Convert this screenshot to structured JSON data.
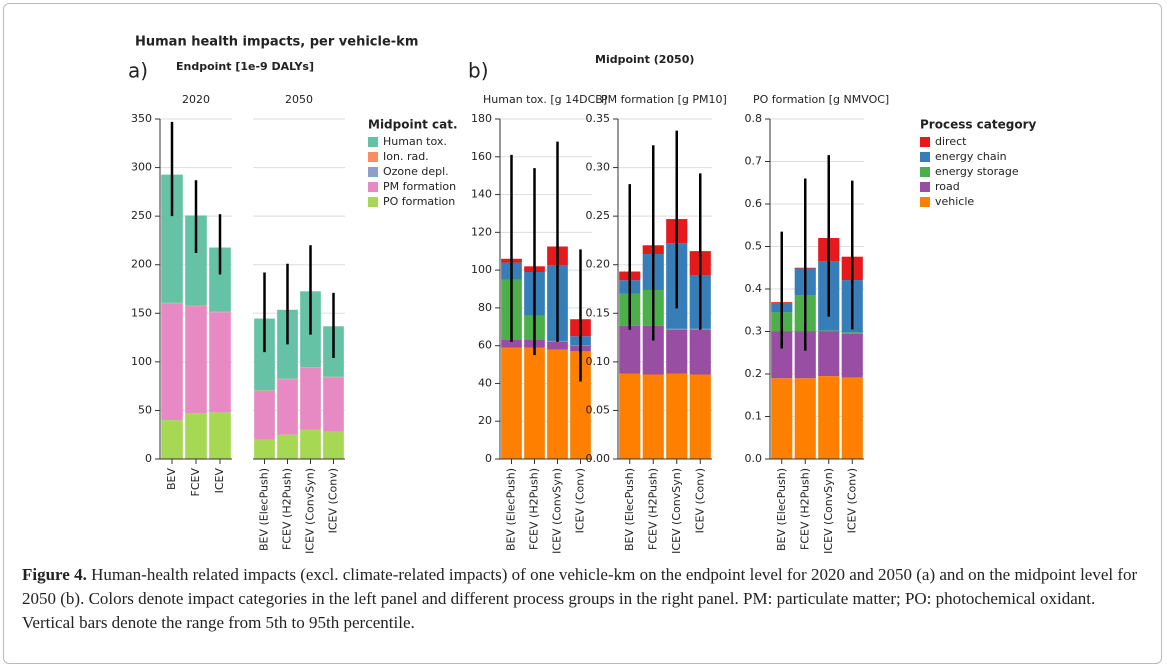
{
  "title": "Human health impacts, per vehicle-km",
  "panels": [
    {
      "label": "a)",
      "title": "Endpoint [1e-9 DALYs]"
    },
    {
      "label": "b)",
      "title": "Midpoint (2050)"
    }
  ],
  "chart_data": [
    {
      "type": "bar",
      "stacked": true,
      "title": "2020",
      "categories": [
        "BEV",
        "FCEV",
        "ICEV"
      ],
      "ylim": [
        0,
        350
      ],
      "yticks": [
        0,
        50,
        100,
        150,
        200,
        250,
        300,
        350
      ],
      "grid": true,
      "legend": true,
      "legend_title": "Midpoint cat.",
      "series": [
        {
          "name": "PO formation",
          "color": "#a6d854",
          "values": [
            40,
            47,
            48
          ]
        },
        {
          "name": "PM formation",
          "color": "#e78ac3",
          "values": [
            120,
            110,
            103
          ]
        },
        {
          "name": "Ozone depl.",
          "color": "#8da0cb",
          "values": [
            0.2,
            0.2,
            0.2
          ]
        },
        {
          "name": "Ion. rad.",
          "color": "#fc8d62",
          "values": [
            0.5,
            0.5,
            0.5
          ]
        },
        {
          "name": "Human tox.",
          "color": "#66c2a5",
          "values": [
            132,
            93,
            66
          ]
        }
      ],
      "ci_low": [
        250,
        212,
        190
      ],
      "ci_high": [
        347,
        287,
        252
      ]
    },
    {
      "type": "bar",
      "stacked": true,
      "title": "2050",
      "categories": [
        "BEV (ElecPush)",
        "FCEV (H2Push)",
        "ICEV (ConvSyn)",
        "ICEV (Conv)"
      ],
      "ylim": [
        0,
        350
      ],
      "grid": true,
      "legend": false,
      "series": [
        {
          "color": "#a6d854",
          "values": [
            20,
            25,
            30,
            28
          ]
        },
        {
          "color": "#e78ac3",
          "values": [
            50,
            57,
            64,
            56
          ]
        },
        {
          "color": "#8da0cb",
          "values": [
            0.2,
            0.2,
            0.2,
            0.2
          ]
        },
        {
          "color": "#fc8d62",
          "values": [
            0.4,
            0.4,
            0.4,
            0.4
          ]
        },
        {
          "color": "#66c2a5",
          "values": [
            74,
            71,
            78,
            52
          ]
        }
      ],
      "ci_low": [
        110,
        118,
        128,
        104
      ],
      "ci_high": [
        192,
        201,
        220,
        171
      ]
    },
    {
      "type": "bar",
      "stacked": true,
      "title": "Human tox. [g 14DCB]",
      "categories": [
        "BEV (ElecPush)",
        "FCEV (H2Push)",
        "ICEV (ConvSyn)",
        "ICEV (Conv)"
      ],
      "ylim": [
        0,
        180
      ],
      "yticks": [
        0,
        20,
        40,
        60,
        80,
        100,
        120,
        140,
        160,
        180
      ],
      "grid": true,
      "legend": false,
      "series": [
        {
          "color": "#ff7f00",
          "values": [
            59,
            59,
            58,
            57
          ]
        },
        {
          "color": "#984ea3",
          "values": [
            4,
            4,
            4,
            3
          ]
        },
        {
          "color": "#4daf4a",
          "values": [
            32,
            13,
            0.5,
            0.3
          ]
        },
        {
          "color": "#377eb8",
          "values": [
            9,
            23,
            40,
            4.7
          ]
        },
        {
          "color": "#e41a1c",
          "values": [
            2,
            3,
            10,
            9
          ]
        }
      ],
      "ci_low": [
        62,
        55,
        62,
        41
      ],
      "ci_high": [
        161,
        154,
        168,
        111
      ]
    },
    {
      "type": "bar",
      "stacked": true,
      "title": "PM formation [g PM10]",
      "categories": [
        "BEV (ElecPush)",
        "FCEV (H2Push)",
        "ICEV (ConvSyn)",
        "ICEV (Conv)"
      ],
      "ylim": [
        0,
        0.35
      ],
      "yticks": [
        {
          "value": 0,
          "label": "0.00"
        },
        0.05,
        {
          "value": 0.1,
          "label": "0.10"
        },
        0.15,
        {
          "value": 0.2,
          "label": "0.20"
        },
        0.25,
        {
          "value": 0.3,
          "label": "0.30"
        },
        0.35
      ],
      "grid": true,
      "legend": false,
      "series": [
        {
          "color": "#ff7f00",
          "values": [
            0.088,
            0.087,
            0.088,
            0.087
          ]
        },
        {
          "color": "#984ea3",
          "values": [
            0.049,
            0.05,
            0.045,
            0.046
          ]
        },
        {
          "color": "#4daf4a",
          "values": [
            0.033,
            0.037,
            0.001,
            0.001
          ]
        },
        {
          "color": "#377eb8",
          "values": [
            0.014,
            0.037,
            0.088,
            0.055
          ]
        },
        {
          "color": "#e41a1c",
          "values": [
            0.009,
            0.009,
            0.025,
            0.025
          ]
        }
      ],
      "ci_low": [
        0.133,
        0.122,
        0.155,
        0.133
      ],
      "ci_high": [
        0.283,
        0.323,
        0.338,
        0.294
      ]
    },
    {
      "type": "bar",
      "stacked": true,
      "title": "PO formation [g NMVOC]",
      "categories": [
        "BEV (ElecPush)",
        "FCEV (H2Push)",
        "ICEV (ConvSyn)",
        "ICEV (Conv)"
      ],
      "ylim": [
        0,
        0.8
      ],
      "yticks": [
        {
          "value": 0,
          "label": "0.0"
        },
        0.1,
        0.2,
        0.3,
        0.4,
        0.5,
        0.6,
        0.7,
        0.8
      ],
      "grid": true,
      "legend": true,
      "legend_title": "Process category",
      "series": [
        {
          "name": "vehicle",
          "color": "#ff7f00",
          "values": [
            0.19,
            0.19,
            0.195,
            0.192
          ]
        },
        {
          "name": "road",
          "color": "#984ea3",
          "values": [
            0.11,
            0.11,
            0.105,
            0.103
          ]
        },
        {
          "name": "energy storage",
          "color": "#4daf4a",
          "values": [
            0.045,
            0.085,
            0.002,
            0.003
          ]
        },
        {
          "name": "energy chain",
          "color": "#377eb8",
          "values": [
            0.022,
            0.063,
            0.163,
            0.123
          ]
        },
        {
          "name": "direct",
          "color": "#e41a1c",
          "values": [
            0.002,
            0.002,
            0.055,
            0.055
          ]
        }
      ],
      "ci_low": [
        0.26,
        0.255,
        0.335,
        0.305
      ],
      "ci_high": [
        0.535,
        0.66,
        0.715,
        0.655
      ]
    }
  ],
  "caption": {
    "label": "Figure 4.",
    "text": "Human-health related impacts (excl. climate-related impacts) of one vehicle-km on the endpoint level for 2020 and 2050 (a) and on the midpoint level for 2050 (b). Colors denote impact categories in the left panel and different process groups in the right panel. PM: particulate matter; PO: photochemical oxidant. Vertical bars denote the range from 5th to 95th percentile."
  }
}
